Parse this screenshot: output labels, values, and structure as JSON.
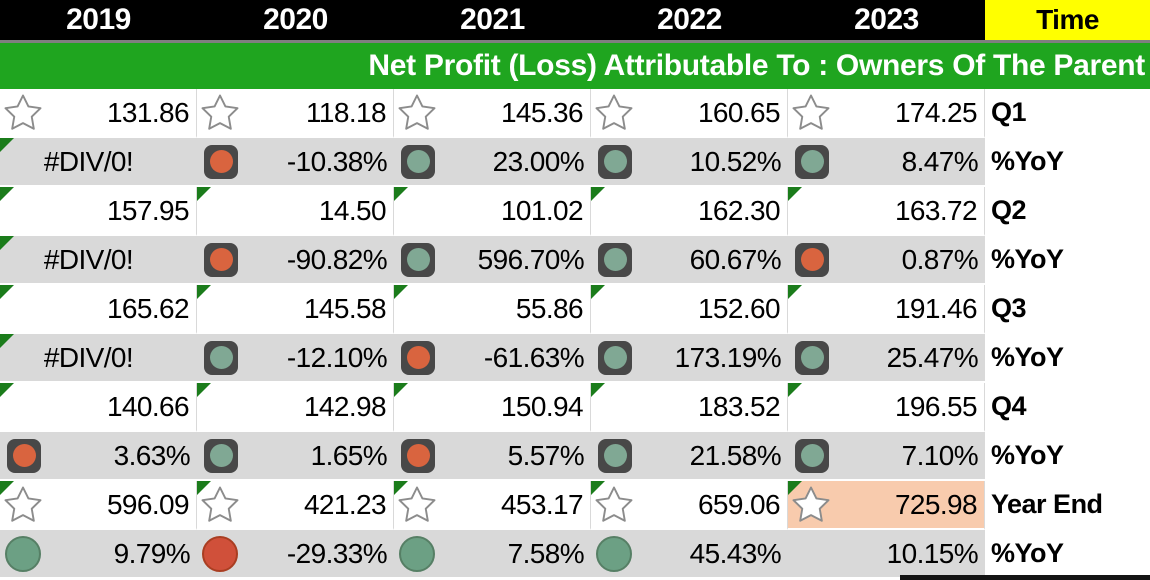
{
  "header": {
    "years": [
      "2019",
      "2020",
      "2021",
      "2022",
      "2023"
    ],
    "time_label": "Time"
  },
  "title": "Net Profit (Loss) Attributable To : Owners Of The Parent",
  "colors": {
    "header_bg": "#000000",
    "time_header_bg": "#FFFF00",
    "title_band_bg": "#1FA51F",
    "alt_row_bg": "#D9D9D9",
    "highlight_cell_bg": "#F8CBAD",
    "comment_marker": "#1B7C1B",
    "icon_box_bg": "#484848",
    "icon_red": "#D9643F",
    "icon_green": "#80A894",
    "plain_circle_red": "#D0503A",
    "plain_circle_green": "#6CA084"
  },
  "rows": [
    {
      "label": "Q1",
      "bg": "white",
      "cells": [
        {
          "icon": "star",
          "value": "131.86"
        },
        {
          "icon": "star",
          "value": "118.18"
        },
        {
          "icon": "star",
          "value": "145.36"
        },
        {
          "icon": "star",
          "value": "160.65"
        },
        {
          "icon": "star",
          "value": "174.25"
        }
      ]
    },
    {
      "label": "%YoY",
      "bg": "gray",
      "cells": [
        {
          "icon": "none",
          "value": "#DIV/0!",
          "align": "center",
          "corner": true
        },
        {
          "icon": "box-red",
          "value": "-10.38%"
        },
        {
          "icon": "box-green",
          "value": "23.00%"
        },
        {
          "icon": "box-green",
          "value": "10.52%"
        },
        {
          "icon": "box-green",
          "value": "8.47%"
        }
      ]
    },
    {
      "label": "Q2",
      "bg": "white",
      "cells": [
        {
          "icon": "none",
          "value": "157.95",
          "corner": true
        },
        {
          "icon": "none",
          "value": "14.50",
          "corner": true
        },
        {
          "icon": "none",
          "value": "101.02",
          "corner": true
        },
        {
          "icon": "none",
          "value": "162.30",
          "corner": true
        },
        {
          "icon": "none",
          "value": "163.72",
          "corner": true
        }
      ]
    },
    {
      "label": "%YoY",
      "bg": "gray",
      "cells": [
        {
          "icon": "none",
          "value": "#DIV/0!",
          "align": "center",
          "corner": true
        },
        {
          "icon": "box-red",
          "value": "-90.82%"
        },
        {
          "icon": "box-green",
          "value": "596.70%"
        },
        {
          "icon": "box-green",
          "value": "60.67%"
        },
        {
          "icon": "box-red",
          "value": "0.87%"
        }
      ]
    },
    {
      "label": "Q3",
      "bg": "white",
      "cells": [
        {
          "icon": "none",
          "value": "165.62",
          "corner": true
        },
        {
          "icon": "none",
          "value": "145.58",
          "corner": true
        },
        {
          "icon": "none",
          "value": "55.86",
          "corner": true
        },
        {
          "icon": "none",
          "value": "152.60",
          "corner": true
        },
        {
          "icon": "none",
          "value": "191.46",
          "corner": true
        }
      ]
    },
    {
      "label": "%YoY",
      "bg": "gray",
      "cells": [
        {
          "icon": "none",
          "value": "#DIV/0!",
          "align": "center",
          "corner": true
        },
        {
          "icon": "box-green",
          "value": "-12.10%"
        },
        {
          "icon": "box-red",
          "value": "-61.63%"
        },
        {
          "icon": "box-green",
          "value": "173.19%"
        },
        {
          "icon": "box-green",
          "value": "25.47%"
        }
      ]
    },
    {
      "label": "Q4",
      "bg": "white",
      "cells": [
        {
          "icon": "none",
          "value": "140.66",
          "corner": true
        },
        {
          "icon": "none",
          "value": "142.98",
          "corner": true
        },
        {
          "icon": "none",
          "value": "150.94",
          "corner": true
        },
        {
          "icon": "none",
          "value": "183.52",
          "corner": true
        },
        {
          "icon": "none",
          "value": "196.55",
          "corner": true
        }
      ]
    },
    {
      "label": "%YoY",
      "bg": "gray",
      "cells": [
        {
          "icon": "box-red",
          "value": "3.63%"
        },
        {
          "icon": "box-green",
          "value": "1.65%"
        },
        {
          "icon": "box-red",
          "value": "5.57%"
        },
        {
          "icon": "box-green",
          "value": "21.58%"
        },
        {
          "icon": "box-green",
          "value": "7.10%"
        }
      ]
    },
    {
      "label": "Year End",
      "bg": "white",
      "cells": [
        {
          "icon": "star",
          "value": "596.09",
          "corner": true
        },
        {
          "icon": "star",
          "value": "421.23",
          "corner": true
        },
        {
          "icon": "star",
          "value": "453.17",
          "corner": true
        },
        {
          "icon": "star",
          "value": "659.06",
          "corner": true
        },
        {
          "icon": "star",
          "value": "725.98",
          "corner": true,
          "highlight": true
        }
      ]
    },
    {
      "label": "%YoY",
      "bg": "gray",
      "cells": [
        {
          "icon": "circle-green",
          "value": "9.79%"
        },
        {
          "icon": "circle-red",
          "value": "-29.33%"
        },
        {
          "icon": "circle-green",
          "value": "7.58%"
        },
        {
          "icon": "circle-green",
          "value": "45.43%"
        },
        {
          "icon": "none",
          "value": "10.15%"
        }
      ]
    }
  ]
}
